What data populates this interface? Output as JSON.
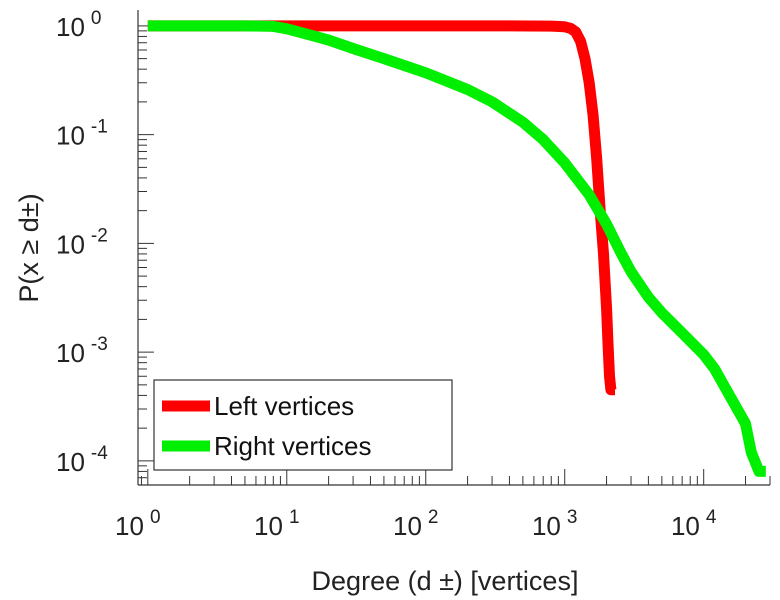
{
  "chart_data": {
    "type": "line",
    "title": "",
    "xlabel": "Degree (d ±) [vertices]",
    "ylabel": "P(x ≥ d±)",
    "x_scale": "log",
    "y_scale": "log",
    "xlim": [
      0.85,
      30000
    ],
    "ylim": [
      6e-05,
      1.4
    ],
    "grid": false,
    "legend_position": "bottom-left",
    "x_ticks": [
      {
        "value": 1,
        "base": "10",
        "exp": "0"
      },
      {
        "value": 10,
        "base": "10",
        "exp": "1"
      },
      {
        "value": 100,
        "base": "10",
        "exp": "2"
      },
      {
        "value": 1000,
        "base": "10",
        "exp": "3"
      },
      {
        "value": 10000,
        "base": "10",
        "exp": "4"
      }
    ],
    "y_ticks": [
      {
        "value": 1,
        "base": "10",
        "exp": "0"
      },
      {
        "value": 0.1,
        "base": "10",
        "exp": "-1"
      },
      {
        "value": 0.01,
        "base": "10",
        "exp": "-2"
      },
      {
        "value": 0.001,
        "base": "10",
        "exp": "-3"
      },
      {
        "value": 0.0001,
        "base": "10",
        "exp": "-4"
      }
    ],
    "series": [
      {
        "name": "Left vertices",
        "color": "#ff0000",
        "points": [
          [
            1,
            1.0
          ],
          [
            10,
            1.0
          ],
          [
            100,
            1.0
          ],
          [
            400,
            1.0
          ],
          [
            800,
            0.995
          ],
          [
            1000,
            0.98
          ],
          [
            1100,
            0.95
          ],
          [
            1200,
            0.88
          ],
          [
            1300,
            0.72
          ],
          [
            1400,
            0.5
          ],
          [
            1500,
            0.3
          ],
          [
            1600,
            0.15
          ],
          [
            1700,
            0.06
          ],
          [
            1800,
            0.02
          ],
          [
            1900,
            0.008
          ],
          [
            2000,
            0.0025
          ],
          [
            2050,
            0.0012
          ],
          [
            2100,
            0.0006
          ],
          [
            2150,
            0.00045
          ],
          [
            2300,
            0.00045
          ]
        ]
      },
      {
        "name": "Right vertices",
        "color": "#00ee00",
        "points": [
          [
            1,
            1.0
          ],
          [
            5,
            1.0
          ],
          [
            8,
            0.99
          ],
          [
            10,
            0.94
          ],
          [
            15,
            0.82
          ],
          [
            20,
            0.74
          ],
          [
            30,
            0.62
          ],
          [
            50,
            0.5
          ],
          [
            100,
            0.37
          ],
          [
            200,
            0.26
          ],
          [
            300,
            0.2
          ],
          [
            500,
            0.13
          ],
          [
            700,
            0.09
          ],
          [
            1000,
            0.055
          ],
          [
            1500,
            0.028
          ],
          [
            2000,
            0.015
          ],
          [
            2500,
            0.0085
          ],
          [
            3000,
            0.0055
          ],
          [
            4000,
            0.0032
          ],
          [
            5000,
            0.0023
          ],
          [
            7000,
            0.0015
          ],
          [
            10000,
            0.00095
          ],
          [
            12000,
            0.0007
          ],
          [
            15000,
            0.00042
          ],
          [
            20000,
            0.00022
          ],
          [
            22000,
            0.00012
          ],
          [
            25000,
            8e-05
          ],
          [
            28000,
            8e-05
          ]
        ]
      }
    ]
  }
}
